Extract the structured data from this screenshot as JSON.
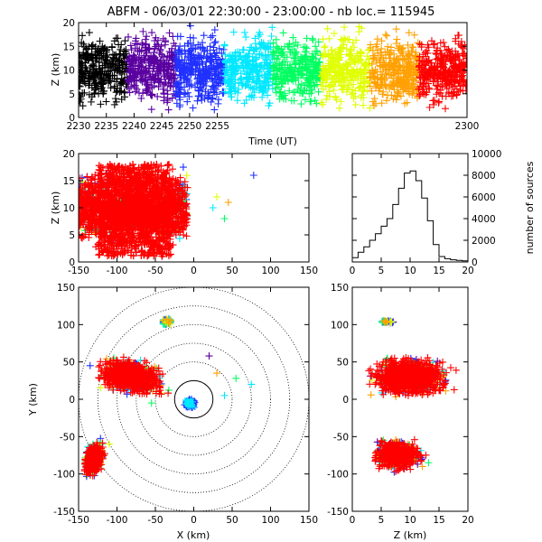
{
  "chart_data": {
    "type": "scatter",
    "title": "ABFM - 06/03/01 22:30:00 - 23:00:00 - nb loc.= 115945",
    "color_scale": [
      "#000000",
      "#5a00a0",
      "#2030ff",
      "#00e8ff",
      "#00ff60",
      "#e0ff00",
      "#ffa000",
      "#ff0000"
    ],
    "panels": [
      {
        "id": "time-height",
        "type": "scatter",
        "xlabel": "Time (UT)",
        "ylabel": "Z (km)",
        "xlim": [
          2230,
          2300
        ],
        "ylim": [
          0,
          20
        ],
        "xticks": [
          "2230",
          "2235",
          "2240",
          "2245",
          "2250",
          "2255",
          "2300"
        ],
        "yticks": [
          "0",
          "5",
          "10",
          "15",
          "20"
        ],
        "description_values": {
          "source_altitude_range_km": [
            0,
            20
          ],
          "time_span_hhmm": [
            2230,
            2300
          ]
        }
      },
      {
        "id": "x-z",
        "type": "scatter",
        "xlabel": "",
        "ylabel": "Z (km)",
        "xlim": [
          -150,
          150
        ],
        "ylim": [
          0,
          20
        ],
        "xticks": [
          "-150",
          "-100",
          "-50",
          "0",
          "50",
          "100",
          "150"
        ],
        "yticks": [
          "0",
          "5",
          "10",
          "15",
          "20"
        ],
        "clusters": [
          {
            "x_range": [
              -150,
              -8
            ],
            "z_range": [
              0,
              20
            ],
            "center": [
              -85,
              10
            ]
          }
        ],
        "outliers": [
          [
            78,
            16
          ],
          [
            45,
            11
          ],
          [
            40,
            8
          ],
          [
            25,
            10
          ],
          [
            30,
            12
          ]
        ]
      },
      {
        "id": "altitude-histogram",
        "type": "line",
        "xlabel": "",
        "ylabel": "number of sources",
        "xlim": [
          0,
          20
        ],
        "ylim": [
          0,
          10000
        ],
        "xticks": [
          "0",
          "5",
          "10",
          "15",
          "20"
        ],
        "yticks": [
          "0",
          "2000",
          "4000",
          "6000",
          "8000",
          "10000"
        ],
        "x": [
          0.5,
          1.5,
          2.5,
          3.5,
          4.5,
          5.5,
          6.5,
          7.5,
          8.5,
          9.5,
          10.5,
          11.5,
          12.5,
          13.5,
          14.5,
          15.5,
          16.5,
          17.5,
          18.5,
          19.5
        ],
        "y": [
          400,
          900,
          1400,
          2000,
          2600,
          3300,
          4000,
          5300,
          6800,
          8200,
          8400,
          7500,
          5900,
          3800,
          1600,
          500,
          300,
          200,
          150,
          100
        ]
      },
      {
        "id": "plan-view",
        "type": "scatter",
        "xlabel": "X (km)",
        "ylabel": "Y (km)",
        "xlim": [
          -150,
          150
        ],
        "ylim": [
          -150,
          150
        ],
        "xticks": [
          "-150",
          "-100",
          "-50",
          "0",
          "50",
          "100",
          "150"
        ],
        "yticks": [
          "-150",
          "-100",
          "-50",
          "0",
          "50",
          "100",
          "150"
        ],
        "range_rings_km": [
          25,
          50,
          75,
          100,
          125,
          150
        ],
        "clusters": [
          {
            "center": [
              -80,
              30
            ],
            "extent": [
              [
                -145,
                -5
              ],
              [
                -20,
                65
              ]
            ]
          },
          {
            "center": [
              -130,
              -85
            ],
            "extent": [
              [
                -150,
                -100
              ],
              [
                -110,
                -40
              ]
            ]
          },
          {
            "center": [
              -35,
              104
            ],
            "extent": [
              [
                -40,
                -30
              ],
              [
                100,
                108
              ]
            ]
          },
          {
            "center": [
              -5,
              -5
            ],
            "extent": [
              [
                -20,
                10
              ],
              [
                -20,
                10
              ]
            ]
          }
        ]
      },
      {
        "id": "z-y",
        "type": "scatter",
        "xlabel": "Z (km)",
        "ylabel": "",
        "xlim": [
          0,
          20
        ],
        "ylim": [
          -150,
          150
        ],
        "xticks": [
          "0",
          "5",
          "10",
          "15",
          "20"
        ],
        "yticks": [
          "-150",
          "-100",
          "-50",
          "0",
          "50",
          "100",
          "150"
        ],
        "clusters": [
          {
            "center": [
              10,
              30
            ],
            "z_range": [
              0,
              20
            ],
            "y_range": [
              -5,
              60
            ]
          },
          {
            "center": [
              8,
              -75
            ],
            "z_range": [
              3,
              15
            ],
            "y_range": [
              -110,
              -45
            ]
          },
          {
            "center": [
              6,
              104
            ],
            "z_range": [
              2,
              8
            ],
            "y_range": [
              100,
              108
            ]
          }
        ]
      }
    ]
  }
}
